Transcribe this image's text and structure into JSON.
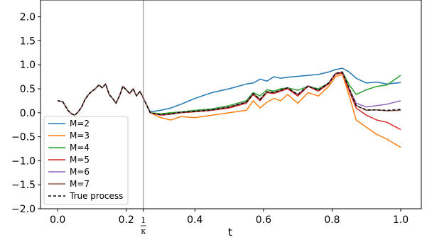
{
  "chart_data": {
    "type": "line",
    "title": "",
    "xlabel": "t",
    "ylabel": "",
    "xlim": [
      -0.05,
      1.06
    ],
    "ylim": [
      -2.0,
      2.35
    ],
    "x_ticks": [
      0.0,
      0.2,
      0.4,
      0.6,
      0.8,
      1.0
    ],
    "x_tick_labels": [
      "0.0",
      "0.2",
      "0.4",
      "0.6",
      "0.8",
      "1.0"
    ],
    "y_ticks": [
      -2.0,
      -1.5,
      -1.0,
      -0.5,
      0.0,
      0.5,
      1.0,
      1.5,
      2.0
    ],
    "y_tick_labels": [
      "−2.0",
      "−1.5",
      "−1.0",
      "−0.5",
      "0.0",
      "0.5",
      "1.0",
      "1.5",
      "2.0"
    ],
    "grid": false,
    "legend_position": "lower-left",
    "vertical_line": {
      "x": 0.25,
      "label_numerator": "1",
      "label_denominator": "κ",
      "color": "#7f7f7f"
    },
    "shared_path": {
      "x": [
        0.0,
        0.015,
        0.03,
        0.04,
        0.05,
        0.06,
        0.07,
        0.08,
        0.09,
        0.1,
        0.11,
        0.12,
        0.13,
        0.14,
        0.15,
        0.16,
        0.17,
        0.18,
        0.19,
        0.2,
        0.21,
        0.22,
        0.23,
        0.24,
        0.25
      ],
      "y": [
        0.25,
        0.23,
        0.05,
        -0.02,
        -0.05,
        0.02,
        0.12,
        0.28,
        0.38,
        0.45,
        0.5,
        0.58,
        0.52,
        0.6,
        0.38,
        0.3,
        0.2,
        0.35,
        0.55,
        0.48,
        0.4,
        0.5,
        0.35,
        0.45,
        0.3
      ]
    },
    "x": [
      0.25,
      0.27,
      0.3,
      0.33,
      0.36,
      0.4,
      0.45,
      0.5,
      0.55,
      0.57,
      0.59,
      0.61,
      0.63,
      0.65,
      0.67,
      0.7,
      0.73,
      0.76,
      0.79,
      0.81,
      0.83,
      0.85,
      0.87,
      0.9,
      0.93,
      0.96,
      1.0
    ],
    "series": [
      {
        "name": "M=2",
        "color": "#1f77b4",
        "dash": "",
        "values": [
          0.3,
          0.02,
          0.05,
          0.1,
          0.18,
          0.3,
          0.42,
          0.5,
          0.6,
          0.62,
          0.7,
          0.66,
          0.75,
          0.72,
          0.74,
          0.76,
          0.78,
          0.8,
          0.85,
          0.9,
          0.93,
          0.85,
          0.72,
          0.62,
          0.64,
          0.6,
          0.63
        ]
      },
      {
        "name": "M=3",
        "color": "#ff7f0e",
        "dash": "",
        "values": [
          0.3,
          0.0,
          -0.1,
          -0.15,
          -0.08,
          -0.1,
          -0.05,
          0.0,
          0.05,
          0.25,
          0.1,
          0.22,
          0.3,
          0.25,
          0.38,
          0.2,
          0.42,
          0.35,
          0.55,
          0.75,
          0.8,
          0.35,
          -0.15,
          -0.3,
          -0.45,
          -0.55,
          -0.72
        ]
      },
      {
        "name": "M=4",
        "color": "#2ca02c",
        "dash": "",
        "values": [
          0.3,
          0.0,
          -0.02,
          0.0,
          0.02,
          0.05,
          0.08,
          0.15,
          0.25,
          0.42,
          0.35,
          0.48,
          0.45,
          0.5,
          0.52,
          0.47,
          0.55,
          0.5,
          0.62,
          0.8,
          0.85,
          0.58,
          0.38,
          0.48,
          0.55,
          0.58,
          0.78
        ]
      },
      {
        "name": "M=5",
        "color": "#d62728",
        "dash": "",
        "values": [
          0.3,
          0.0,
          -0.05,
          -0.03,
          0.0,
          0.02,
          0.05,
          0.1,
          0.2,
          0.38,
          0.25,
          0.42,
          0.4,
          0.45,
          0.5,
          0.35,
          0.55,
          0.45,
          0.6,
          0.8,
          0.83,
          0.45,
          0.1,
          -0.05,
          -0.15,
          -0.2,
          -0.35
        ]
      },
      {
        "name": "M=6",
        "color": "#9467bd",
        "dash": "",
        "values": [
          0.3,
          0.0,
          -0.04,
          -0.02,
          0.01,
          0.03,
          0.06,
          0.12,
          0.22,
          0.4,
          0.28,
          0.44,
          0.42,
          0.47,
          0.52,
          0.38,
          0.56,
          0.47,
          0.62,
          0.82,
          0.85,
          0.5,
          0.2,
          0.12,
          0.15,
          0.18,
          0.25
        ]
      },
      {
        "name": "M=7",
        "color": "#8c564b",
        "dash": "",
        "values": [
          0.3,
          0.0,
          -0.04,
          -0.02,
          0.01,
          0.03,
          0.06,
          0.12,
          0.22,
          0.4,
          0.28,
          0.44,
          0.42,
          0.47,
          0.52,
          0.38,
          0.56,
          0.47,
          0.62,
          0.82,
          0.85,
          0.5,
          0.15,
          0.05,
          0.06,
          0.04,
          0.05
        ]
      },
      {
        "name": "True process",
        "color": "#000000",
        "dash": "4,3",
        "values": [
          0.3,
          0.0,
          -0.04,
          -0.02,
          0.01,
          0.03,
          0.06,
          0.12,
          0.22,
          0.4,
          0.28,
          0.44,
          0.42,
          0.47,
          0.52,
          0.38,
          0.56,
          0.47,
          0.62,
          0.82,
          0.85,
          0.5,
          0.15,
          0.06,
          0.06,
          0.05,
          0.07
        ]
      }
    ]
  }
}
